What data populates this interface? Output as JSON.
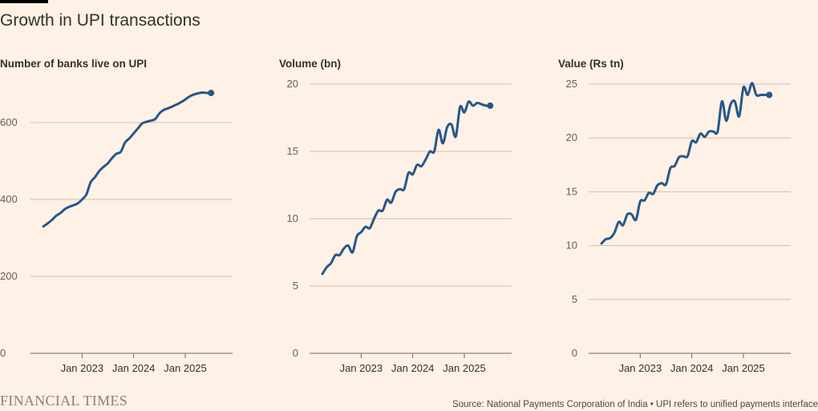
{
  "title": "Growth in UPI transactions",
  "footer": {
    "logo": "FINANCIAL TIMES",
    "source": "Source: National Payments Corporation of India • UPI refers to unified payments interface"
  },
  "colors": {
    "line": "#26578c",
    "grid": "#ccc1b7",
    "background": "#fff1e5"
  },
  "chart_data": [
    {
      "type": "line",
      "ylabel": "Number of banks live on UPI",
      "ylim": [
        0,
        700
      ],
      "yticks": [
        0,
        200,
        400,
        600
      ],
      "ytick_labels": [
        "0",
        "200",
        "400",
        "600"
      ],
      "xlim": [
        "2022-01",
        "2025-12"
      ],
      "xticks": [
        "2023-01",
        "2024-01",
        "2025-01"
      ],
      "xtick_labels": [
        "Jan 2023",
        "Jan 2024",
        "Jan 2025"
      ],
      "series": [
        {
          "x": [
            "2022-04",
            "2022-05",
            "2022-06",
            "2022-07",
            "2022-08",
            "2022-09",
            "2022-10",
            "2022-11",
            "2022-12",
            "2023-01",
            "2023-02",
            "2023-03",
            "2023-04",
            "2023-05",
            "2023-06",
            "2023-07",
            "2023-08",
            "2023-09",
            "2023-10",
            "2023-11",
            "2023-12",
            "2024-01",
            "2024-02",
            "2024-03",
            "2024-04",
            "2024-05",
            "2024-06",
            "2024-07",
            "2024-08",
            "2024-09",
            "2024-10",
            "2024-11",
            "2024-12",
            "2025-01",
            "2025-02",
            "2025-03",
            "2025-04",
            "2025-05",
            "2025-06",
            "2025-07"
          ],
          "values": [
            330,
            338,
            347,
            358,
            365,
            375,
            381,
            385,
            390,
            400,
            413,
            445,
            458,
            474,
            485,
            494,
            508,
            519,
            524,
            548,
            559,
            572,
            585,
            598,
            602,
            605,
            609,
            624,
            633,
            637,
            642,
            647,
            653,
            660,
            668,
            673,
            676,
            678,
            677,
            677
          ]
        }
      ]
    },
    {
      "type": "line",
      "ylabel": "Volume (bn)",
      "ylim": [
        0,
        20
      ],
      "yticks": [
        0,
        5,
        10,
        15,
        20
      ],
      "ytick_labels": [
        "0",
        "5",
        "10",
        "15",
        "20"
      ],
      "xlim": [
        "2022-01",
        "2025-12"
      ],
      "xticks": [
        "2023-01",
        "2024-01",
        "2025-01"
      ],
      "xtick_labels": [
        "Jan 2023",
        "Jan 2024",
        "Jan 2025"
      ],
      "series": [
        {
          "x": [
            "2022-04",
            "2022-05",
            "2022-06",
            "2022-07",
            "2022-08",
            "2022-09",
            "2022-10",
            "2022-11",
            "2022-12",
            "2023-01",
            "2023-02",
            "2023-03",
            "2023-04",
            "2023-05",
            "2023-06",
            "2023-07",
            "2023-08",
            "2023-09",
            "2023-10",
            "2023-11",
            "2023-12",
            "2024-01",
            "2024-02",
            "2024-03",
            "2024-04",
            "2024-05",
            "2024-06",
            "2024-07",
            "2024-08",
            "2024-09",
            "2024-10",
            "2024-11",
            "2024-12",
            "2025-01",
            "2025-02",
            "2025-03",
            "2025-04",
            "2025-05",
            "2025-06",
            "2025-07"
          ],
          "values": [
            5.9,
            6.4,
            6.7,
            7.3,
            7.3,
            7.8,
            8.0,
            7.5,
            8.7,
            9.0,
            9.4,
            9.3,
            10.0,
            10.6,
            10.6,
            11.4,
            11.2,
            12.0,
            12.2,
            12.2,
            13.4,
            13.3,
            14.0,
            13.9,
            14.4,
            15.0,
            15.0,
            16.6,
            15.6,
            16.8,
            17.0,
            16.1,
            18.3,
            17.9,
            18.7,
            18.4,
            18.6,
            18.5,
            18.4,
            18.4
          ]
        }
      ]
    },
    {
      "type": "line",
      "ylabel": "Value (Rs tn)",
      "ylim": [
        0,
        25
      ],
      "yticks": [
        0,
        5,
        10,
        15,
        20,
        25
      ],
      "ytick_labels": [
        "0",
        "5",
        "10",
        "15",
        "20",
        "25"
      ],
      "xlim": [
        "2022-01",
        "2025-12"
      ],
      "xticks": [
        "2023-01",
        "2024-01",
        "2025-01"
      ],
      "xtick_labels": [
        "Jan 2023",
        "Jan 2024",
        "Jan 2025"
      ],
      "series": [
        {
          "x": [
            "2022-04",
            "2022-05",
            "2022-06",
            "2022-07",
            "2022-08",
            "2022-09",
            "2022-10",
            "2022-11",
            "2022-12",
            "2023-01",
            "2023-02",
            "2023-03",
            "2023-04",
            "2023-05",
            "2023-06",
            "2023-07",
            "2023-08",
            "2023-09",
            "2023-10",
            "2023-11",
            "2023-12",
            "2024-01",
            "2024-02",
            "2024-03",
            "2024-04",
            "2024-05",
            "2024-06",
            "2024-07",
            "2024-08",
            "2024-09",
            "2024-10",
            "2024-11",
            "2024-12",
            "2025-01",
            "2025-02",
            "2025-03",
            "2025-04",
            "2025-05",
            "2025-06",
            "2025-07"
          ],
          "values": [
            10.2,
            10.6,
            10.7,
            11.2,
            12.2,
            11.9,
            12.9,
            12.9,
            12.4,
            14.1,
            14.2,
            14.9,
            14.8,
            15.6,
            15.8,
            15.7,
            17.2,
            17.4,
            18.2,
            18.3,
            18.3,
            19.7,
            19.6,
            20.4,
            20.1,
            20.6,
            20.6,
            20.6,
            23.4,
            21.6,
            23.1,
            23.4,
            22.0,
            24.7,
            24.0,
            25.1,
            24.0,
            24.0,
            24.0,
            24.0
          ]
        }
      ]
    }
  ]
}
